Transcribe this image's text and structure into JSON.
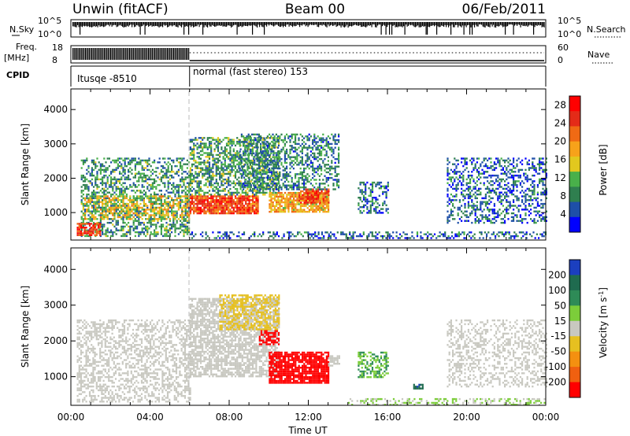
{
  "header": {
    "left_title": "Unwin (fitACF)",
    "center_title": "Beam 00",
    "right_title": "06/Feb/2011"
  },
  "summary_panels": {
    "nsky_label": "N.Sky",
    "nsky_ticks": [
      "10^5",
      "10^0"
    ],
    "nsearch_label": "N.Search",
    "nsearch_ticks": [
      "10^5",
      "10^0"
    ],
    "freq_label": "Freq.",
    "freq_unit": "[MHz]",
    "freq_ticks": [
      "18",
      "8"
    ],
    "nave_label": "Nave",
    "nave_ticks": [
      "60",
      "0"
    ],
    "cpid_label": "CPID",
    "cpid_segments": [
      {
        "label": "Itusqe -8510",
        "start_hour": 0,
        "end_hour": 6
      },
      {
        "label": "normal (fast stereo) 153",
        "start_hour": 6,
        "end_hour": 24
      }
    ]
  },
  "colors": {
    "power_scale": [
      "#0000ff",
      "#1e4fa8",
      "#2f7f4f",
      "#49b04a",
      "#e2c81e",
      "#f7a21a",
      "#f06a14",
      "#e42b18",
      "#ff0000"
    ],
    "velocity_scale": [
      "#1b3fbf",
      "#1f6b4f",
      "#2e8b57",
      "#7ccd3a",
      "#c8c8c0",
      "#e6c020",
      "#f49010",
      "#f06010",
      "#ff0000"
    ]
  },
  "chart_data": [
    {
      "type": "heatmap",
      "title": "",
      "xlabel": "Time UT",
      "ylabel": "Slant Range [km]",
      "xlim": [
        0,
        24
      ],
      "ylim": [
        200,
        4600
      ],
      "x_ticks": [
        "00:00",
        "04:00",
        "08:00",
        "12:00",
        "16:00",
        "20:00",
        "00:00"
      ],
      "y_ticks": [
        "1000",
        "2000",
        "3000",
        "4000"
      ],
      "colorbar_label": "Power [dB]",
      "colorbar_ticks": [
        "4",
        "8",
        "12",
        "16",
        "20",
        "24",
        "28"
      ],
      "colorbar_range": [
        0,
        30
      ],
      "regions": [
        {
          "t0": 0.5,
          "t1": 6.0,
          "r0": 300,
          "r1": 2600,
          "value": 9,
          "density": 0.45
        },
        {
          "t0": 0.5,
          "t1": 6.0,
          "r0": 800,
          "r1": 1500,
          "value": 16,
          "density": 0.5
        },
        {
          "t0": 0.3,
          "t1": 1.5,
          "r0": 350,
          "r1": 700,
          "value": 25,
          "density": 0.7
        },
        {
          "t0": 6.0,
          "t1": 9.5,
          "r0": 1000,
          "r1": 1500,
          "value": 24,
          "density": 0.9
        },
        {
          "t0": 6.0,
          "t1": 10.5,
          "r0": 1500,
          "r1": 3200,
          "value": 10,
          "density": 0.55
        },
        {
          "t0": 10.0,
          "t1": 13.0,
          "r0": 1000,
          "r1": 1600,
          "value": 18,
          "density": 0.8
        },
        {
          "t0": 11.5,
          "t1": 13.0,
          "r0": 1300,
          "r1": 1700,
          "value": 24,
          "density": 0.8
        },
        {
          "t0": 8.5,
          "t1": 13.5,
          "r0": 1700,
          "r1": 3300,
          "value": 8,
          "density": 0.45
        },
        {
          "t0": 14.5,
          "t1": 16.0,
          "r0": 1000,
          "r1": 1900,
          "value": 7,
          "density": 0.45
        },
        {
          "t0": 19.0,
          "t1": 24.0,
          "r0": 700,
          "r1": 2600,
          "value": 6,
          "density": 0.4
        },
        {
          "t0": 6.0,
          "t1": 24.0,
          "r0": 250,
          "r1": 450,
          "value": 6,
          "density": 0.35
        }
      ]
    },
    {
      "type": "heatmap",
      "title": "",
      "xlabel": "Time UT",
      "ylabel": "Slant Range [km]",
      "xlim": [
        0,
        24
      ],
      "ylim": [
        200,
        4600
      ],
      "x_ticks": [
        "00:00",
        "04:00",
        "08:00",
        "12:00",
        "16:00",
        "20:00",
        "00:00"
      ],
      "y_ticks": [
        "1000",
        "2000",
        "3000",
        "4000"
      ],
      "colorbar_label": "Velocity [m s^-1]",
      "colorbar_ticks": [
        "200",
        "100",
        "50",
        "15",
        "-15",
        "-50",
        "-100",
        "-200"
      ],
      "colorbar_range": [
        -250,
        250
      ],
      "regions": [
        {
          "t0": 0.3,
          "t1": 6.0,
          "r0": 300,
          "r1": 2600,
          "value": 0,
          "density": 0.45
        },
        {
          "t0": 6.0,
          "t1": 10.5,
          "r0": 1000,
          "r1": 3200,
          "value": 0,
          "density": 0.7
        },
        {
          "t0": 7.5,
          "t1": 10.5,
          "r0": 2300,
          "r1": 3300,
          "value": -45,
          "density": 0.55
        },
        {
          "t0": 10.0,
          "t1": 13.0,
          "r0": 850,
          "r1": 1700,
          "value": -230,
          "density": 0.85
        },
        {
          "t0": 9.5,
          "t1": 10.5,
          "r0": 1900,
          "r1": 2300,
          "value": -230,
          "density": 0.6
        },
        {
          "t0": 13.0,
          "t1": 13.6,
          "r0": 1300,
          "r1": 1600,
          "value": 0,
          "density": 0.7
        },
        {
          "t0": 14.5,
          "t1": 16.0,
          "r0": 1000,
          "r1": 1700,
          "value": 80,
          "density": 0.5
        },
        {
          "t0": 17.3,
          "t1": 17.8,
          "r0": 650,
          "r1": 800,
          "value": 180,
          "density": 0.8
        },
        {
          "t0": 19.0,
          "t1": 24.0,
          "r0": 700,
          "r1": 2600,
          "value": 0,
          "density": 0.35
        },
        {
          "t0": 14.0,
          "t1": 24.0,
          "r0": 230,
          "r1": 400,
          "value": 30,
          "density": 0.4
        }
      ]
    }
  ]
}
